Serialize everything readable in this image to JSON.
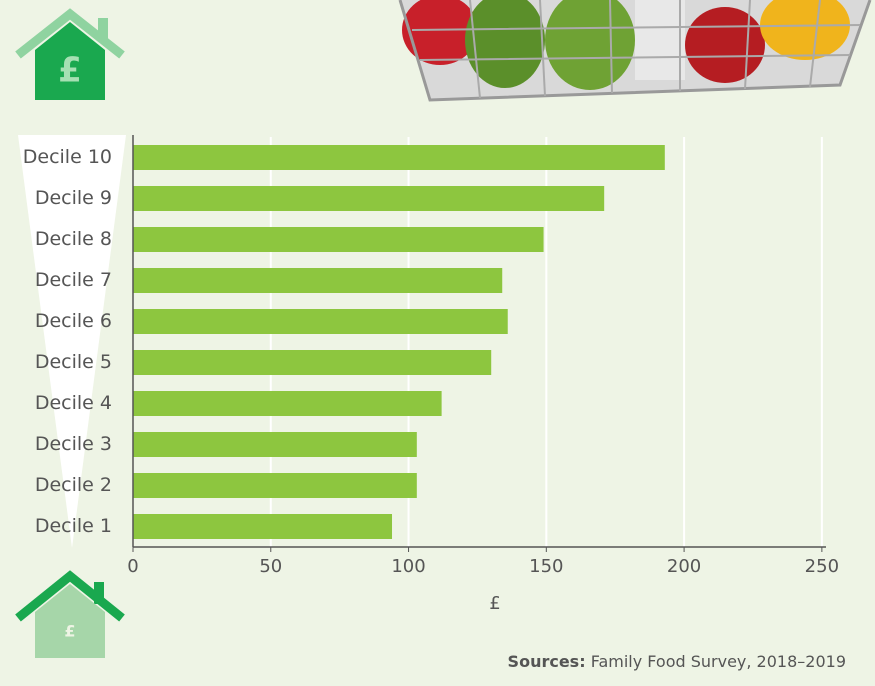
{
  "chart_data": {
    "type": "bar",
    "orientation": "horizontal",
    "categories": [
      "Decile 10",
      "Decile 9",
      "Decile 8",
      "Decile 7",
      "Decile 6",
      "Decile 5",
      "Decile 4",
      "Decile 3",
      "Decile 2",
      "Decile 1"
    ],
    "values": [
      193,
      171,
      149,
      134,
      136,
      130,
      112,
      103,
      103,
      94
    ],
    "color": "#8dc63f",
    "xlabel": "£",
    "xlim": [
      0,
      251.5
    ],
    "xticks": [
      0,
      50,
      100,
      150,
      200,
      250
    ],
    "grid": true,
    "source_label": "Sources:",
    "source_text": "Family Food Survey, 2018–2019",
    "top_icon_symbol": "£",
    "bottom_icon_symbol": "£"
  }
}
